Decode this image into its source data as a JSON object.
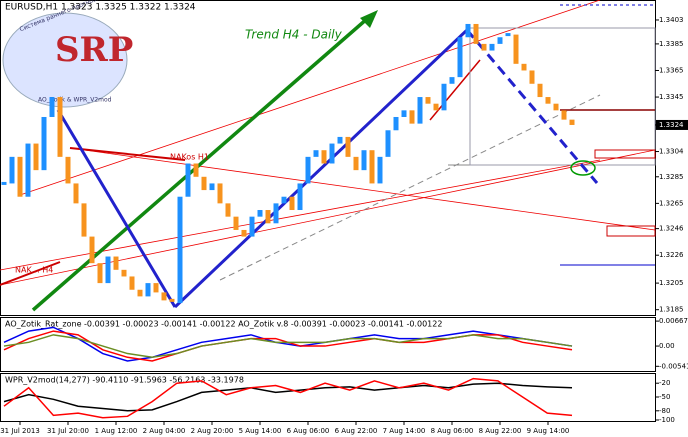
{
  "chart_data": [
    {
      "type": "bar",
      "title": "EURUSD,H1  1.3323 1.3325 1.3322 1.3324",
      "annotations": [
        "Trend H4 - Daily",
        "NAKos H1",
        "NAK… H4"
      ],
      "logo": [
        "SRP",
        "Система раннего прогнозирования",
        "AO_Zotik & WPR_V2mod"
      ],
      "categories": [
        null,
        null,
        "31 Jul 2013",
        null,
        null,
        null,
        null,
        null,
        "31 Jul 20:00",
        null,
        null,
        null,
        null,
        null,
        "1 Aug 12:00",
        null,
        null,
        null,
        null,
        null,
        "2 Aug 04:00",
        null,
        null,
        null,
        null,
        null,
        "2 Aug 20:00",
        null,
        null,
        null,
        null,
        null,
        "5 Aug 14:00",
        null,
        null,
        null,
        null,
        null,
        "6 Aug 06:00",
        null,
        null,
        null,
        null,
        null,
        "6 Aug 22:00",
        null,
        null,
        null,
        null,
        null,
        "7 Aug 14:00",
        null,
        null,
        null,
        null,
        null,
        "8 Aug 06:00",
        null,
        null,
        null,
        null,
        null,
        "8 Aug 22:00",
        null,
        null,
        null,
        null,
        null,
        "9 Aug 14:00",
        null,
        null,
        null
      ],
      "values": [
        1.328,
        1.33,
        1.327,
        1.331,
        1.329,
        1.333,
        1.3345,
        1.33,
        1.328,
        1.3265,
        1.324,
        1.322,
        1.3205,
        1.3225,
        1.3215,
        1.321,
        1.32,
        1.3195,
        1.3205,
        1.3198,
        1.3192,
        1.319,
        1.327,
        1.3295,
        1.3285,
        1.3275,
        1.328,
        1.3265,
        1.3255,
        1.3245,
        1.324,
        1.3255,
        1.326,
        1.325,
        1.3265,
        1.327,
        1.326,
        1.328,
        1.33,
        1.3305,
        1.3295,
        1.331,
        1.3315,
        1.33,
        1.329,
        1.3305,
        1.328,
        1.33,
        1.332,
        1.333,
        1.3335,
        1.3325,
        1.3345,
        1.334,
        1.3335,
        1.3355,
        1.336,
        1.339,
        1.34,
        1.3385,
        1.338,
        1.3385,
        1.339,
        1.3392,
        1.337,
        1.3365,
        1.3355,
        1.3345,
        1.334,
        1.3335,
        1.3328,
        1.3324
      ],
      "up_color": "#1e90ff",
      "down_color": "#f7931e",
      "ylim": [
        1.3181,
        1.3409
      ],
      "yticks": [
        1.3185,
        1.3205,
        1.3226,
        1.3246,
        1.3265,
        1.3285,
        1.3304,
        1.3324,
        1.3345,
        1.3365,
        1.3385,
        1.3403
      ]
    },
    {
      "type": "line",
      "title": "AO_Zotik_Rat_zone -0.00391 -0.00023 -0.00141 -0.00122  AO_Zotik v.8 -0.00391 -0.00023 -0.00141 -0.00122",
      "ylim": [
        -0.0064,
        0.0075
      ],
      "yticks": [
        0.00667,
        {
          "value": 0,
          "label": "0.00"
        },
        -0.00541
      ],
      "series": [
        {
          "color": "#0000ee",
          "values": [
            0.001,
            0.004,
            0.005,
            0.002,
            -0.002,
            -0.004,
            -0.003,
            -0.001,
            0.001,
            0.002,
            0.003,
            0.001,
            0.0,
            0.001,
            0.002,
            0.003,
            0.002,
            0.002,
            0.003,
            0.004,
            0.003,
            0.002,
            0.001,
            0.0
          ]
        },
        {
          "color": "#ff0000",
          "values": [
            -0.001,
            0.002,
            0.004,
            0.003,
            -0.001,
            -0.003,
            -0.004,
            -0.002,
            0.0,
            0.001,
            0.002,
            0.002,
            0.0,
            0.0,
            0.001,
            0.002,
            0.001,
            0.001,
            0.002,
            0.003,
            0.003,
            0.001,
            0.0,
            -0.001
          ]
        },
        {
          "color": "#6b8e23",
          "values": [
            0.0,
            0.001,
            0.003,
            0.002,
            0.0,
            -0.002,
            -0.003,
            -0.002,
            0.0,
            0.001,
            0.002,
            0.001,
            0.001,
            0.001,
            0.002,
            0.002,
            0.001,
            0.002,
            0.002,
            0.003,
            0.002,
            0.002,
            0.001,
            0.0
          ]
        }
      ]
    },
    {
      "type": "line",
      "title": "WPR_V2mod(14,277) -90.4110 -91.5963 -56.2163 -33.1978",
      "ylim": [
        -100,
        0
      ],
      "yticks": [
        -20,
        -50,
        -80,
        -100
      ],
      "series": [
        {
          "color": "#000000",
          "values": [
            -60,
            -45,
            -55,
            -70,
            -75,
            -80,
            -78,
            -60,
            -40,
            -35,
            -30,
            -40,
            -35,
            -30,
            -28,
            -35,
            -30,
            -25,
            -30,
            -22,
            -20,
            -25,
            -28,
            -30
          ]
        },
        {
          "color": "#ff0000",
          "values": [
            -70,
            -30,
            -90,
            -85,
            -95,
            -92,
            -60,
            -20,
            -15,
            -45,
            -30,
            -25,
            -40,
            -20,
            -35,
            -15,
            -30,
            -20,
            -35,
            -10,
            -15,
            -50,
            -85,
            -90
          ]
        }
      ]
    }
  ]
}
